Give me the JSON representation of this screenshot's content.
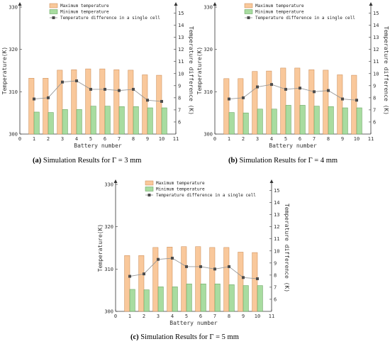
{
  "colors": {
    "max_bar": "#f9c89b",
    "max_bar_stroke": "#c8864e",
    "min_bar": "#a8dca0",
    "min_bar_stroke": "#5a9a52",
    "diff_line": "#999999",
    "diff_marker": "#4d4d4d",
    "axis": "#333333"
  },
  "captions": [
    {
      "label": "(a)",
      "text": " Simulation Results for Γ = 3 mm"
    },
    {
      "label": "(b)",
      "text": " Simulation Results for Γ = 4 mm"
    },
    {
      "label": "(c)",
      "text": " Simulation Results for Γ = 5 mm"
    }
  ],
  "chart_data": [
    {
      "type": "bar",
      "xlabel": "Battery number",
      "ylabel": "Temperature(K)",
      "y2label": "Temperature difference (K)",
      "xlim": [
        0,
        11
      ],
      "ylim": [
        300,
        330
      ],
      "y2lim": [
        5,
        15.5
      ],
      "xticks": [
        0,
        1,
        2,
        3,
        4,
        5,
        6,
        7,
        8,
        9,
        10,
        11
      ],
      "yticks": [
        300,
        310,
        320,
        330
      ],
      "y2ticks": [
        6,
        7,
        8,
        9,
        10,
        11,
        12,
        13,
        14,
        15
      ],
      "legend_position": "top",
      "categories": [
        1,
        2,
        3,
        4,
        5,
        6,
        7,
        8,
        9,
        10
      ],
      "series": [
        {
          "name": "Maximum temperature",
          "kind": "bar",
          "axis": "left",
          "values": [
            313.2,
            313.2,
            315.1,
            315.2,
            315.4,
            315.4,
            315.2,
            315.1,
            314.0,
            313.9
          ]
        },
        {
          "name": "Minimum temperature",
          "kind": "bar",
          "axis": "left",
          "values": [
            305.2,
            305.1,
            305.8,
            305.8,
            306.6,
            306.6,
            306.5,
            306.5,
            306.2,
            306.2
          ]
        },
        {
          "name": "Temperature difference in a single cell",
          "kind": "line",
          "axis": "right",
          "values": [
            7.9,
            8.0,
            9.3,
            9.4,
            8.7,
            8.7,
            8.6,
            8.7,
            7.8,
            7.7
          ]
        }
      ]
    },
    {
      "type": "bar",
      "xlabel": "Battery number",
      "ylabel": "Temperature(K)",
      "y2label": "Temperature difference (K)",
      "xlim": [
        0,
        11
      ],
      "ylim": [
        300,
        330
      ],
      "y2lim": [
        5,
        15.5
      ],
      "xticks": [
        0,
        1,
        2,
        3,
        4,
        5,
        6,
        7,
        8,
        9,
        10,
        11
      ],
      "yticks": [
        300,
        310,
        320,
        330
      ],
      "y2ticks": [
        6,
        7,
        8,
        9,
        10,
        11,
        12,
        13,
        14,
        15
      ],
      "legend_position": "top",
      "categories": [
        1,
        2,
        3,
        4,
        5,
        6,
        7,
        8,
        9,
        10
      ],
      "series": [
        {
          "name": "Maximum temperature",
          "kind": "bar",
          "axis": "left",
          "values": [
            313.1,
            313.1,
            314.8,
            314.9,
            315.6,
            315.6,
            315.2,
            315.1,
            314.0,
            313.9
          ]
        },
        {
          "name": "Minimum temperature",
          "kind": "bar",
          "axis": "left",
          "values": [
            305.1,
            305.0,
            305.9,
            305.9,
            306.8,
            306.8,
            306.6,
            306.5,
            306.2,
            306.2
          ]
        },
        {
          "name": "Temperature difference in a single cell",
          "kind": "line",
          "axis": "right",
          "values": [
            7.9,
            8.0,
            8.9,
            9.1,
            8.7,
            8.8,
            8.5,
            8.6,
            7.9,
            7.8
          ]
        }
      ]
    },
    {
      "type": "bar",
      "xlabel": "Battery number",
      "ylabel": "Temperature(K)",
      "y2label": "Temperature difference (K)",
      "xlim": [
        0,
        11
      ],
      "ylim": [
        300,
        330
      ],
      "y2lim": [
        5,
        15.5
      ],
      "xticks": [
        0,
        1,
        2,
        3,
        4,
        5,
        6,
        7,
        8,
        9,
        10,
        11
      ],
      "yticks": [
        300,
        310,
        320,
        330
      ],
      "y2ticks": [
        6,
        7,
        8,
        9,
        10,
        11,
        12,
        13,
        14,
        15
      ],
      "legend_position": "top",
      "categories": [
        1,
        2,
        3,
        4,
        5,
        6,
        7,
        8,
        9,
        10
      ],
      "series": [
        {
          "name": "Maximum temperature",
          "kind": "bar",
          "axis": "left",
          "values": [
            313.2,
            313.2,
            315.1,
            315.2,
            315.3,
            315.3,
            315.1,
            315.1,
            314.0,
            313.9
          ]
        },
        {
          "name": "Minimum temperature",
          "kind": "bar",
          "axis": "left",
          "values": [
            305.2,
            305.1,
            305.8,
            305.8,
            306.5,
            306.5,
            306.5,
            306.3,
            306.1,
            306.1
          ]
        },
        {
          "name": "Temperature difference in a single cell",
          "kind": "line",
          "axis": "right",
          "values": [
            7.9,
            8.1,
            9.3,
            9.4,
            8.7,
            8.7,
            8.5,
            8.7,
            7.8,
            7.7
          ]
        }
      ]
    }
  ]
}
